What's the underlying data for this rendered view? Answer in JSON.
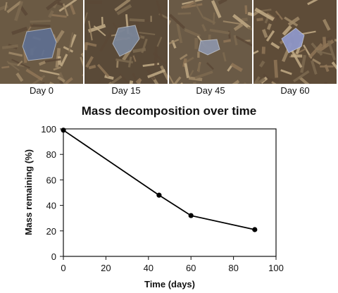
{
  "photos": [
    {
      "caption": "Day 0",
      "fragment_color": "#5f6f8f",
      "soil_color": "#6b5a44"
    },
    {
      "caption": "Day 15",
      "fragment_color": "#7a8598",
      "soil_color": "#5a4a38"
    },
    {
      "caption": "Day 45",
      "fragment_color": "#8c93a8",
      "soil_color": "#6a5a46"
    },
    {
      "caption": "Day 60",
      "fragment_color": "#8e97c8",
      "soil_color": "#5e4c38"
    }
  ],
  "chart_data": {
    "type": "line",
    "title": "Mass decomposition over time",
    "xlabel": "Time (days)",
    "ylabel": "Mass remaining (%)",
    "xlim": [
      0,
      100
    ],
    "ylim": [
      0,
      100
    ],
    "xticks": [
      0,
      20,
      40,
      60,
      80,
      100
    ],
    "yticks": [
      0,
      20,
      40,
      60,
      80,
      100
    ],
    "grid": false,
    "series": [
      {
        "x": [
          0,
          45,
          60,
          90
        ],
        "y": [
          99,
          48,
          32,
          21
        ]
      }
    ],
    "line_color": "#000000"
  }
}
